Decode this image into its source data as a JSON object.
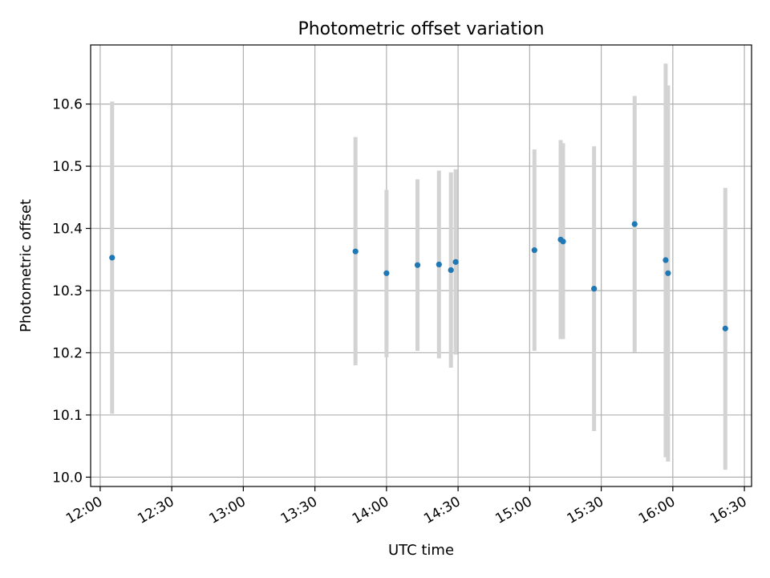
{
  "chart_data": {
    "type": "scatter",
    "title": "Photometric offset variation",
    "xlabel": "UTC time",
    "ylabel": "Photometric offset",
    "xlim": [
      "11:56",
      "16:33"
    ],
    "ylim": [
      9.985,
      10.695
    ],
    "x_ticks": [
      "12:00",
      "12:30",
      "13:00",
      "13:30",
      "14:00",
      "14:30",
      "15:00",
      "15:30",
      "16:00",
      "16:30"
    ],
    "y_ticks": [
      "10.0",
      "10.1",
      "10.2",
      "10.3",
      "10.4",
      "10.5",
      "10.6"
    ],
    "grid": true,
    "colors": {
      "point": "#1f77b4",
      "errorbar": "#d3d3d3"
    },
    "points": [
      {
        "x": "12:05",
        "y": 10.353,
        "ylow": 10.102,
        "yhigh": 10.604
      },
      {
        "x": "13:47",
        "y": 10.363,
        "ylow": 10.18,
        "yhigh": 10.547
      },
      {
        "x": "14:00",
        "y": 10.328,
        "ylow": 10.193,
        "yhigh": 10.462
      },
      {
        "x": "14:13",
        "y": 10.341,
        "ylow": 10.203,
        "yhigh": 10.479
      },
      {
        "x": "14:22",
        "y": 10.342,
        "ylow": 10.191,
        "yhigh": 10.493
      },
      {
        "x": "14:27",
        "y": 10.333,
        "ylow": 10.176,
        "yhigh": 10.49
      },
      {
        "x": "14:29",
        "y": 10.346,
        "ylow": 10.197,
        "yhigh": 10.495
      },
      {
        "x": "15:02",
        "y": 10.365,
        "ylow": 10.203,
        "yhigh": 10.527
      },
      {
        "x": "15:13",
        "y": 10.382,
        "ylow": 10.222,
        "yhigh": 10.542
      },
      {
        "x": "15:14",
        "y": 10.379,
        "ylow": 10.222,
        "yhigh": 10.537
      },
      {
        "x": "15:27",
        "y": 10.303,
        "ylow": 10.074,
        "yhigh": 10.532
      },
      {
        "x": "15:44",
        "y": 10.407,
        "ylow": 10.201,
        "yhigh": 10.613
      },
      {
        "x": "15:57",
        "y": 10.349,
        "ylow": 10.032,
        "yhigh": 10.665
      },
      {
        "x": "15:58",
        "y": 10.328,
        "ylow": 10.025,
        "yhigh": 10.63
      },
      {
        "x": "16:22",
        "y": 10.239,
        "ylow": 10.012,
        "yhigh": 10.465
      }
    ]
  }
}
